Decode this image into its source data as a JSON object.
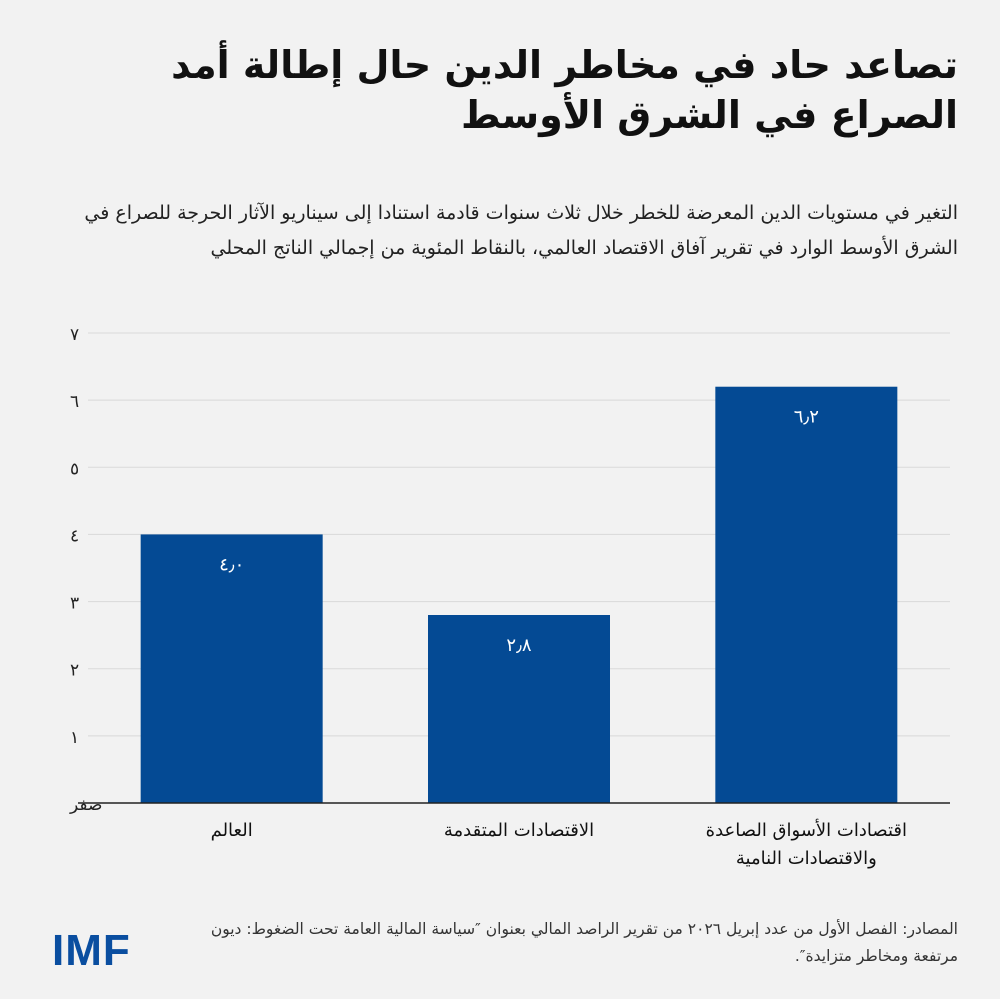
{
  "header": {
    "title": "تصاعد حاد في مخاطر الدين حال إطالة أمد الصراع في الشرق الأوسط",
    "subtitle": "التغير في مستويات الدين المعرضة للخطر خلال ثلاث سنوات قادمة استنادا إلى سيناريو الآثار الحرجة للصراع في الشرق الأوسط الوارد في تقرير آفاق الاقتصاد العالمي، بالنقاط المئوية من إجمالي الناتج المحلي"
  },
  "chart_data": {
    "type": "bar",
    "title": "تصاعد حاد في مخاطر الدين حال إطالة أمد الصراع في الشرق الأوسط",
    "subtitle": "التغير في مستويات الدين المعرضة للخطر خلال ثلاث سنوات قادمة استنادا إلى سيناريو الآثار الحرجة للصراع في الشرق الأوسط الوارد في تقرير آفاق الاقتصاد العالمي، بالنقاط المئوية من إجمالي الناتج المحلي",
    "categories": [
      [
        "العالم"
      ],
      [
        "الاقتصادات المتقدمة"
      ],
      [
        "اقتصادات الأسواق الصاعدة",
        "والاقتصادات النامية"
      ]
    ],
    "values": [
      4.0,
      2.8,
      6.2
    ],
    "value_labels": [
      "٤٫٠",
      "٢٫٨",
      "٦٫٢"
    ],
    "ylim": [
      0,
      7
    ],
    "y_ticks": [
      0,
      1,
      2,
      3,
      4,
      5,
      6,
      7
    ],
    "y_tick_labels": [
      "صفر",
      "١",
      "٢",
      "٣",
      "٤",
      "٥",
      "٦",
      "٧"
    ],
    "grid": true,
    "legend": "none",
    "bar_color": "#044a94",
    "value_label_color": "#ffffff"
  },
  "footer": {
    "source": "المصادر: الفصل الأول من عدد إبريل ٢٠٢٦ من تقرير الراصد المالي بعنوان ″سياسة المالية العامة تحت الضغوط: ديون مرتفعة ومخاطر متزايدة″.",
    "logo_text": "IMF"
  },
  "colors": {
    "background": "#f2f2f2",
    "accent": "#0a4ea0",
    "gridline": "#d9d9d9",
    "axis": "#222222"
  }
}
